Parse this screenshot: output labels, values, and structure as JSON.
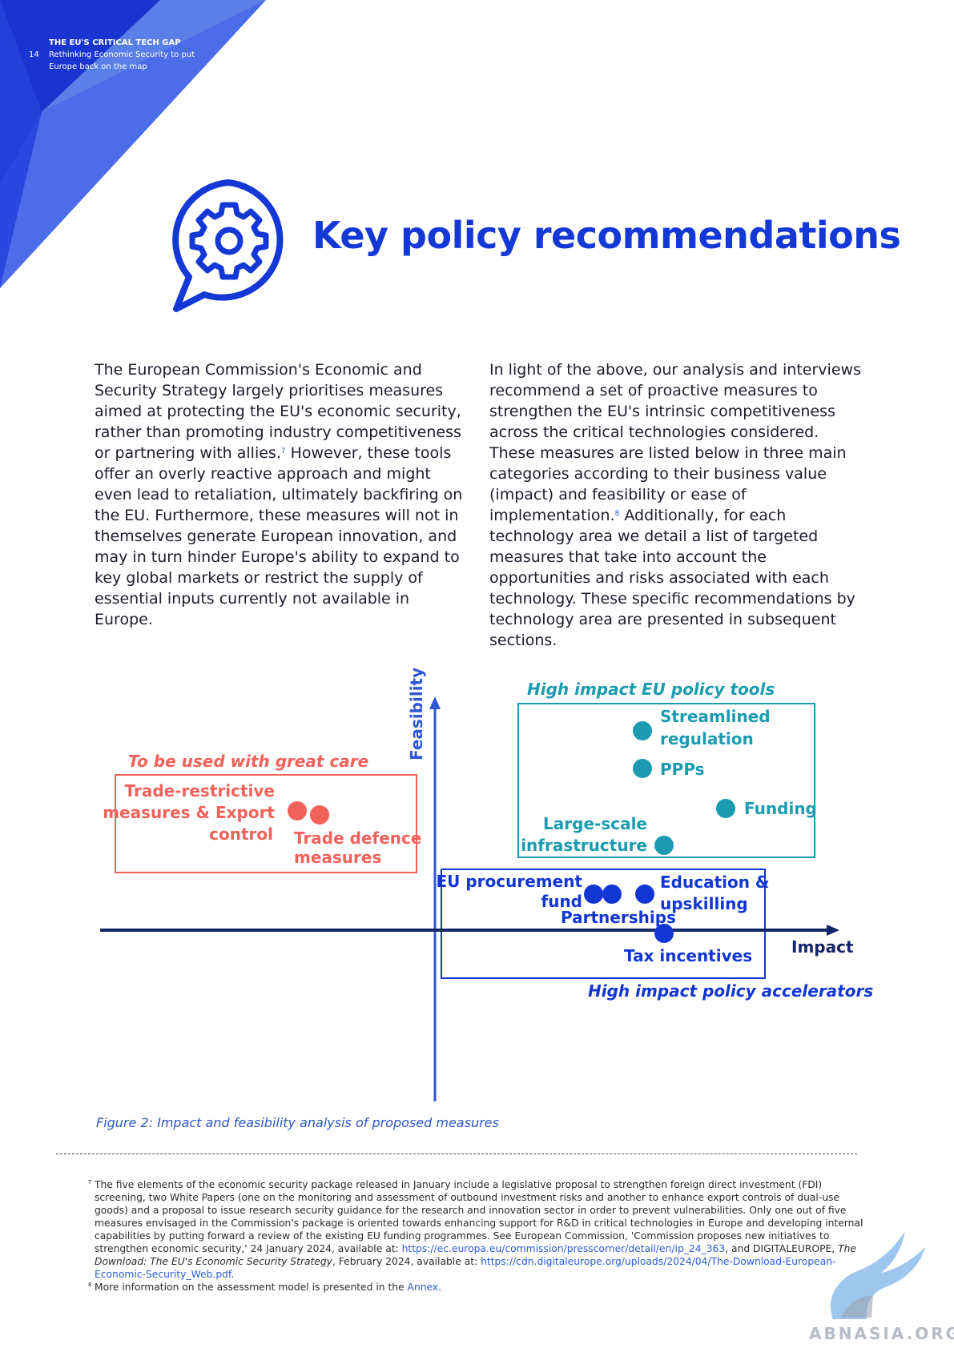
{
  "header": {
    "page_number": "14",
    "doc_title": "THE EU'S CRITICAL TECH GAP",
    "doc_subtitle": "Rethinking Economic Security to put Europe back on the map"
  },
  "section": {
    "title": "Key policy recommendations",
    "icon": "gear-speech-bubble-icon"
  },
  "body": {
    "col1_pre": "The European Commission's Economic and Security Strategy largely prioritises measures aimed at protecting the EU's economic security, rather than promoting industry competitiveness or partnering with allies.",
    "col1_ref": "7",
    "col1_post": " However, these tools offer an overly reactive approach and might even lead to retaliation, ultimately backfiring on the EU. Furthermore, these measures will not in themselves generate European innovation, and may in turn hinder Europe's ability to expand to key global markets or restrict the supply of essential inputs currently not available in Europe.",
    "col2_pre": "In light of the above, our analysis and interviews recommend a set of proactive measures to strengthen the EU's intrinsic competitiveness across the critical technologies considered. These measures are listed below in three main categories according to their business value (impact) and feasibility or ease of implementation.",
    "col2_ref": "8",
    "col2_post": " Additionally, for each technology area we detail a list of targeted measures that take into account the opportunities and risks associated with each technology. These specific recommendations by technology area are presented in subsequent sections."
  },
  "figure": {
    "axis_y_label": "Feasibility",
    "axis_x_label": "Impact",
    "group_care": "To be used with great care",
    "group_tools": "High impact EU policy tools",
    "group_accel": "High impact policy accelerators",
    "pt_trade_restrictive_1": "Trade-restrictive",
    "pt_trade_restrictive_2": "measures & Export",
    "pt_trade_restrictive_3": "control",
    "pt_trade_defence_1": "Trade defence",
    "pt_trade_defence_2": "measures",
    "pt_streamlined_1": "Streamlined",
    "pt_streamlined_2": "regulation",
    "pt_ppps": "PPPs",
    "pt_funding": "Funding",
    "pt_largescale_1": "Large-scale",
    "pt_largescale_2": "infrastructure",
    "pt_procurement_1": "EU procurement",
    "pt_procurement_2": "fund",
    "pt_partnerships": "Partnerships",
    "pt_education_1": "Education &",
    "pt_education_2": "upskilling",
    "pt_tax": "Tax incentives",
    "caption": "Figure 2: Impact and feasibility analysis of proposed measures",
    "colors": {
      "care": "#f0625a",
      "tools": "#1a9bb0",
      "accel": "#1236d2",
      "axis_y": "#2f56d8",
      "axis_x": "#14256a"
    }
  },
  "footnotes": {
    "fn7_num": "7",
    "fn7_text": "The five elements of the economic security package released in January include a legislative proposal to strengthen foreign direct investment (FDI) screening, two White Papers (one on the monitoring and assessment of outbound investment risks and another to enhance export controls of dual-use goods) and a proposal to issue research security guidance for the research and innovation sector in order to prevent vulnerabilities. Only one out of five measures envisaged in the Commission's package is oriented towards enhancing support for R&D in critical technologies in Europe and developing internal capabilities by putting forward a review of the existing EU funding programmes. See European Commission, 'Commission proposes new initiatives to strengthen economic security,' 24 January 2024, available at: ",
    "fn7_link1": "https://ec.europa.eu/commission/presscorner/detail/en/ip_24_363",
    "fn7_mid": ", and DIGITALEUROPE, ",
    "fn7_italic": "The Download: The EU's Economic Security Strategy",
    "fn7_mid2": ", February 2024, available at: ",
    "fn7_link2": "https://cdn.digitaleurope.org/uploads/2024/04/The-Download-European-Economic-Security_Web.pdf",
    "fn7_end": ".",
    "fn8_num": "8",
    "fn8_text": "More information on the assessment model is presented in the ",
    "fn8_link": "Annex",
    "fn8_end": "."
  },
  "watermark": "ABNASIA.ORG"
}
